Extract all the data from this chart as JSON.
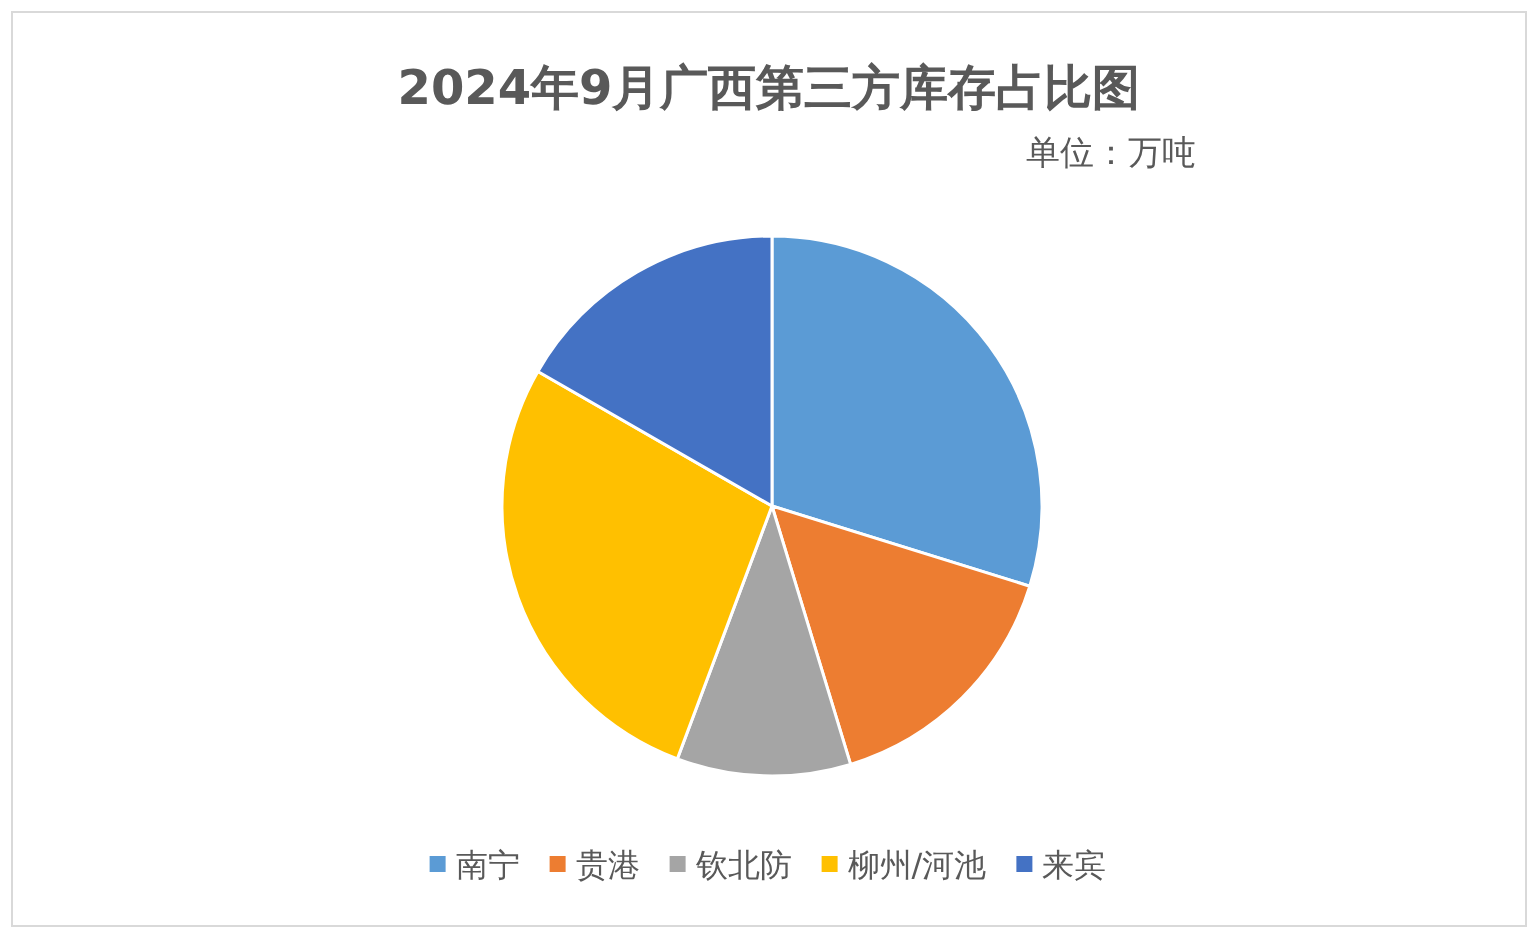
{
  "chart_data": {
    "type": "pie",
    "title": "2024年9月广西第三方库存占比图",
    "subtitle": "单位：万吨",
    "legend": "bottom",
    "categories": [
      "南宁",
      "贵港",
      "钦北防",
      "柳州/河池",
      "来宾"
    ],
    "values": [
      29.8,
      15.5,
      10.4,
      27.6,
      16.7
    ],
    "colors": [
      "#5b9bd5",
      "#ed7d31",
      "#a5a5a5",
      "#ffc000",
      "#4472c4"
    ]
  }
}
